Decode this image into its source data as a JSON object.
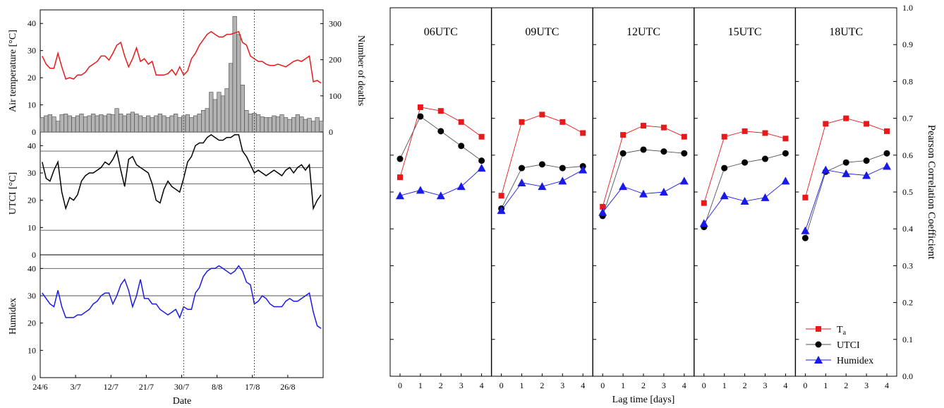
{
  "chart_data": [
    {
      "type": "line+bar",
      "panel": "air-temperature",
      "ylabel": "Air temperature [°C]",
      "ylim": [
        0,
        45
      ],
      "yticks": [
        "0",
        "10",
        "20",
        "30",
        "40"
      ],
      "y2label": "Number of deaths",
      "y2lim": [
        0,
        338
      ],
      "y2ticks": [
        "0",
        "100",
        "200",
        "300"
      ],
      "series": [
        {
          "name": "Air temperature",
          "color": "#e8191a",
          "values": [
            28,
            25,
            23.5,
            23.5,
            29,
            24,
            19.5,
            20,
            19.5,
            21,
            21,
            22,
            24,
            25,
            26,
            28,
            28,
            26.5,
            29,
            32,
            33,
            28,
            24,
            27,
            31,
            26,
            27,
            25,
            26,
            21,
            21,
            21,
            21.5,
            23,
            21,
            24,
            21,
            22.5,
            27,
            29,
            32,
            34,
            36,
            37,
            36,
            35,
            35,
            36,
            36,
            36.5,
            37,
            33,
            32,
            28,
            27,
            26,
            26,
            25,
            24.5,
            24.5,
            25,
            24.5,
            24,
            25,
            26,
            26.5,
            26,
            27,
            28,
            18.5,
            19,
            18
          ]
        },
        {
          "name": "Number of deaths",
          "color": "#b3b3b3",
          "values": [
            40,
            45,
            48,
            42,
            30,
            48,
            50,
            45,
            40,
            45,
            50,
            42,
            45,
            50,
            45,
            48,
            45,
            50,
            48,
            65,
            50,
            45,
            50,
            55,
            50,
            45,
            40,
            45,
            40,
            45,
            50,
            45,
            40,
            45,
            50,
            40,
            45,
            48,
            40,
            45,
            50,
            60,
            65,
            110,
            90,
            110,
            100,
            120,
            190,
            320,
            270,
            130,
            60,
            50,
            52,
            48,
            42,
            40,
            40,
            45,
            42,
            48,
            40,
            35,
            40,
            48,
            42,
            35,
            38,
            30,
            40,
            30
          ]
        }
      ]
    },
    {
      "type": "line",
      "panel": "utci",
      "ylabel": "UTCI [°C]",
      "ylim": [
        0,
        45
      ],
      "yticks": [
        "0",
        "10",
        "20",
        "30",
        "40"
      ],
      "reference_lines": [
        9,
        26,
        32,
        38
      ],
      "series": [
        {
          "name": "UTCI",
          "color": "#000000",
          "values": [
            34,
            28,
            27,
            31,
            34,
            23,
            17,
            21,
            20,
            22,
            27,
            29,
            30,
            30,
            31,
            32,
            34,
            33,
            35,
            38,
            31,
            25,
            35,
            36,
            33,
            32,
            31,
            30,
            26,
            20,
            19,
            24,
            27,
            25,
            24,
            23,
            28,
            34,
            36,
            40,
            41,
            41,
            43,
            44,
            43,
            42,
            42,
            43,
            43,
            44,
            44,
            38,
            36,
            33,
            30,
            31,
            30,
            29,
            30,
            31,
            30,
            29,
            31,
            32,
            30,
            32,
            33,
            31,
            33,
            17,
            20,
            22
          ]
        }
      ]
    },
    {
      "type": "line",
      "panel": "humidex",
      "ylabel": "Humidex",
      "ylim": [
        0,
        45
      ],
      "yticks": [
        "0",
        "10",
        "20",
        "30",
        "40"
      ],
      "reference_lines": [
        30,
        40
      ],
      "xlabel": "Date",
      "xticks": [
        "24/6",
        "3/7",
        "12/7",
        "21/7",
        "30/7",
        "8/8",
        "17/8",
        "26/8"
      ],
      "event_lines_x": [
        36.5,
        54.5
      ],
      "series": [
        {
          "name": "Humidex",
          "color": "#1a1ae6",
          "values": [
            31,
            29,
            27,
            26,
            32,
            26,
            22,
            22,
            22,
            23,
            23,
            24,
            25,
            27,
            28,
            30,
            31,
            31,
            27,
            30,
            34,
            36,
            32,
            26,
            30,
            36,
            29,
            29,
            27,
            27,
            25,
            24,
            23,
            24,
            25,
            22,
            26,
            25,
            25,
            31,
            33,
            37,
            39,
            40,
            40,
            41,
            40,
            39,
            38,
            39,
            41,
            39,
            35,
            34,
            27,
            28,
            30,
            29,
            27,
            26,
            26,
            26,
            28,
            29,
            28,
            28,
            29,
            30,
            31,
            24,
            19,
            18
          ]
        }
      ]
    },
    {
      "type": "scatter-line",
      "panels": [
        "06UTC",
        "09UTC",
        "12UTC",
        "15UTC",
        "18UTC"
      ],
      "xlabel": "Lag time [days]",
      "xticks": [
        "0",
        "1",
        "2",
        "3",
        "4"
      ],
      "ylabel": "Pearson Correlation Coefficient",
      "ylim": [
        0.0,
        1.0
      ],
      "yticks": [
        "0.0",
        "0.1",
        "0.2",
        "0.3",
        "0.4",
        "0.5",
        "0.6",
        "0.7",
        "0.8",
        "0.9",
        "1.0"
      ],
      "legend": {
        "position": "bottom-right",
        "entries": [
          {
            "label": "T",
            "subscript": "a",
            "color": "#e8191a",
            "marker": "square"
          },
          {
            "label": "UTCI",
            "color": "#000000",
            "marker": "circle"
          },
          {
            "label": "Humidex",
            "color": "#1a1ae6",
            "marker": "triangle"
          }
        ]
      },
      "series": [
        {
          "name": "Ta",
          "color": "#e8191a",
          "marker": "square",
          "values": [
            [
              0.54,
              0.73,
              0.72,
              0.69,
              0.65
            ],
            [
              0.49,
              0.69,
              0.71,
              0.69,
              0.66
            ],
            [
              0.46,
              0.655,
              0.68,
              0.675,
              0.65
            ],
            [
              0.47,
              0.65,
              0.665,
              0.66,
              0.645
            ],
            [
              0.485,
              0.685,
              0.7,
              0.685,
              0.665
            ]
          ]
        },
        {
          "name": "UTCI",
          "color": "#000000",
          "marker": "circle",
          "values": [
            [
              0.59,
              0.705,
              0.665,
              0.625,
              0.585
            ],
            [
              0.455,
              0.565,
              0.575,
              0.565,
              0.57
            ],
            [
              0.435,
              0.605,
              0.615,
              0.61,
              0.605
            ],
            [
              0.405,
              0.565,
              0.58,
              0.59,
              0.605
            ],
            [
              0.375,
              0.555,
              0.58,
              0.585,
              0.605
            ]
          ]
        },
        {
          "name": "Humidex",
          "color": "#1a1ae6",
          "marker": "triangle",
          "values": [
            [
              0.49,
              0.505,
              0.49,
              0.515,
              0.565
            ],
            [
              0.45,
              0.525,
              0.515,
              0.53,
              0.56
            ],
            [
              0.445,
              0.515,
              0.495,
              0.5,
              0.53
            ],
            [
              0.415,
              0.49,
              0.475,
              0.485,
              0.53
            ],
            [
              0.395,
              0.56,
              0.55,
              0.545,
              0.57
            ]
          ]
        }
      ]
    }
  ]
}
